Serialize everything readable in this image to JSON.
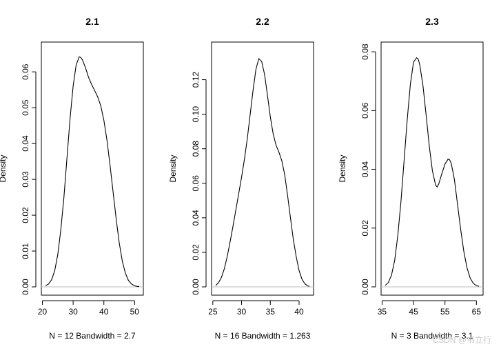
{
  "watermark": "CSDN @书立行",
  "chart_data": [
    {
      "type": "line",
      "title": "2.1",
      "xlabel": "N = 12   Bandwidth = 2.7",
      "ylabel": "Density",
      "xlim": [
        21.0,
        51.5
      ],
      "ylim": [
        0,
        0.066
      ],
      "xticks": [
        20,
        30,
        40,
        50
      ],
      "yticks": [
        0.0,
        0.01,
        0.02,
        0.03,
        0.04,
        0.05,
        0.06
      ],
      "ytick_labels": [
        "0.00",
        "0.01",
        "0.02",
        "0.03",
        "0.04",
        "0.05",
        "0.06"
      ],
      "baseline": 0,
      "grid": false,
      "x": [
        21.0,
        22.0,
        23.0,
        24.0,
        25.0,
        26.0,
        27.0,
        28.0,
        29.0,
        30.0,
        31.0,
        32.0,
        32.5,
        33.0,
        34.0,
        35.0,
        36.0,
        37.0,
        38.0,
        39.0,
        40.0,
        41.0,
        42.0,
        43.0,
        44.0,
        45.0,
        46.0,
        47.0,
        48.0,
        49.0,
        50.0,
        51.0,
        51.5
      ],
      "y": [
        0.0003,
        0.0008,
        0.002,
        0.0045,
        0.009,
        0.016,
        0.025,
        0.036,
        0.047,
        0.056,
        0.062,
        0.0642,
        0.064,
        0.0634,
        0.0612,
        0.0585,
        0.0565,
        0.0548,
        0.053,
        0.0505,
        0.0465,
        0.041,
        0.034,
        0.0265,
        0.019,
        0.0123,
        0.0072,
        0.0038,
        0.0018,
        0.0008,
        0.0003,
        0.0001,
        0.0001
      ]
    },
    {
      "type": "line",
      "title": "2.2",
      "xlabel": "N = 16   Bandwidth = 1.263",
      "ylabel": "Density",
      "xlim": [
        25.5,
        41.8
      ],
      "ylim": [
        0,
        0.137
      ],
      "xticks": [
        25,
        30,
        35,
        40
      ],
      "yticks": [
        0.0,
        0.02,
        0.04,
        0.06,
        0.08,
        0.1,
        0.12
      ],
      "ytick_labels": [
        "0.00",
        "0.02",
        "0.04",
        "0.06",
        "0.08",
        "0.10",
        "0.12"
      ],
      "baseline": 0,
      "grid": false,
      "x": [
        25.5,
        26.0,
        26.5,
        27.0,
        27.5,
        28.0,
        28.5,
        29.0,
        29.5,
        30.0,
        30.5,
        31.0,
        31.5,
        32.0,
        32.5,
        33.0,
        33.5,
        34.0,
        34.5,
        35.0,
        35.5,
        36.0,
        36.5,
        37.0,
        37.5,
        38.0,
        38.5,
        39.0,
        39.5,
        40.0,
        40.5,
        41.0,
        41.5,
        41.8
      ],
      "y": [
        0.0008,
        0.0025,
        0.0055,
        0.0105,
        0.0175,
        0.026,
        0.035,
        0.0445,
        0.054,
        0.0635,
        0.074,
        0.086,
        0.1,
        0.114,
        0.126,
        0.1322,
        0.1305,
        0.123,
        0.111,
        0.0985,
        0.0885,
        0.082,
        0.078,
        0.073,
        0.065,
        0.053,
        0.04,
        0.0275,
        0.0175,
        0.0095,
        0.0045,
        0.0018,
        0.0006,
        0.0003
      ]
    },
    {
      "type": "line",
      "title": "2.3",
      "xlabel": "N = 3   Bandwidth = 3.1",
      "ylabel": "Density",
      "xlim": [
        36.0,
        65.8
      ],
      "ylim": [
        0,
        0.0805
      ],
      "xticks": [
        35,
        45,
        55,
        65
      ],
      "yticks": [
        0.0,
        0.02,
        0.04,
        0.06,
        0.08
      ],
      "ytick_labels": [
        "0.00",
        "0.02",
        "0.04",
        "0.06",
        "0.08"
      ],
      "baseline": 0,
      "grid": false,
      "x": [
        36.0,
        37.0,
        38.0,
        39.0,
        40.0,
        41.0,
        42.0,
        43.0,
        44.0,
        45.0,
        46.0,
        46.5,
        47.0,
        48.0,
        49.0,
        50.0,
        51.0,
        52.0,
        52.5,
        53.0,
        54.0,
        55.0,
        56.0,
        56.5,
        57.0,
        58.0,
        59.0,
        60.0,
        61.0,
        62.0,
        63.0,
        64.0,
        65.0,
        65.8
      ],
      "y": [
        0.0005,
        0.0015,
        0.004,
        0.009,
        0.0175,
        0.029,
        0.043,
        0.057,
        0.069,
        0.0765,
        0.078,
        0.0775,
        0.0755,
        0.0685,
        0.0585,
        0.048,
        0.0395,
        0.0347,
        0.034,
        0.035,
        0.0385,
        0.0418,
        0.0435,
        0.0432,
        0.042,
        0.0365,
        0.028,
        0.0195,
        0.012,
        0.0065,
        0.003,
        0.0012,
        0.0004,
        0.0002
      ]
    }
  ]
}
